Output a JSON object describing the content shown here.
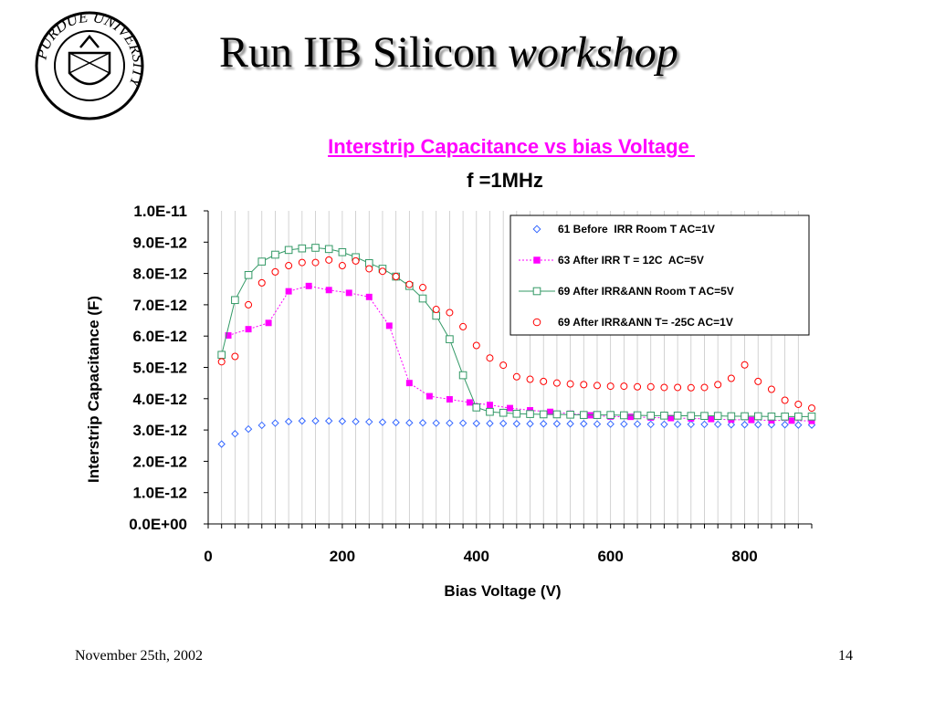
{
  "slide": {
    "title_main": "Run IIB Silicon ",
    "title_italic": "workshop",
    "footer_date": "November 25th, 2002",
    "page_number": "14",
    "logo_text": "PURDUE UNIVERSITY"
  },
  "chart_data": {
    "type": "scatter",
    "title": "Interstrip Capacitance vs bias Voltage ",
    "subtitle": "f =1MHz",
    "xlabel": "Bias Voltage (V)",
    "ylabel": "Interstrip Capacitance (F)",
    "xlim": [
      0,
      900
    ],
    "ylim": [
      0,
      1e-11
    ],
    "x_ticks": [
      0,
      200,
      400,
      600,
      800
    ],
    "x_tick_labels": [
      "0",
      "200",
      "400",
      "600",
      "800"
    ],
    "y_ticks": [
      0,
      1e-12,
      2e-12,
      3e-12,
      4e-12,
      5e-12,
      6e-12,
      7e-12,
      8e-12,
      9e-12,
      1e-11
    ],
    "y_tick_labels": [
      "0.0E+00",
      "1.0E-12",
      "2.0E-12",
      "3.0E-12",
      "4.0E-12",
      "5.0E-12",
      "6.0E-12",
      "7.0E-12",
      "8.0E-12",
      "9.0E-12",
      "1.0E-11"
    ],
    "grid": "vertical",
    "legend_position": "top-right",
    "series": [
      {
        "name": "61 Before  IRR Room T AC=1V",
        "marker": "diamond",
        "line": false,
        "color": "#3366ff",
        "x": [
          20,
          40,
          60,
          80,
          100,
          120,
          140,
          160,
          180,
          200,
          220,
          240,
          260,
          280,
          300,
          320,
          340,
          360,
          380,
          400,
          420,
          440,
          460,
          480,
          500,
          520,
          540,
          560,
          580,
          600,
          620,
          640,
          660,
          680,
          700,
          720,
          740,
          760,
          780,
          800,
          820,
          840,
          860,
          880,
          900
        ],
        "y": [
          2.55e-12,
          2.88e-12,
          3.03e-12,
          3.15e-12,
          3.22e-12,
          3.27e-12,
          3.29e-12,
          3.29e-12,
          3.29e-12,
          3.28e-12,
          3.27e-12,
          3.26e-12,
          3.25e-12,
          3.24e-12,
          3.23e-12,
          3.23e-12,
          3.22e-12,
          3.22e-12,
          3.22e-12,
          3.21e-12,
          3.21e-12,
          3.21e-12,
          3.2e-12,
          3.2e-12,
          3.2e-12,
          3.2e-12,
          3.2e-12,
          3.2e-12,
          3.19e-12,
          3.19e-12,
          3.19e-12,
          3.19e-12,
          3.18e-12,
          3.18e-12,
          3.18e-12,
          3.18e-12,
          3.18e-12,
          3.18e-12,
          3.17e-12,
          3.17e-12,
          3.17e-12,
          3.17e-12,
          3.17e-12,
          3.16e-12,
          3.16e-12
        ]
      },
      {
        "name": "63 After IRR T = 12C  AC=5V",
        "marker": "square-filled",
        "line": true,
        "color": "#ff00ff",
        "x": [
          30,
          60,
          90,
          120,
          150,
          180,
          210,
          240,
          270,
          300,
          330,
          360,
          390,
          420,
          450,
          480,
          510,
          540,
          570,
          600,
          630,
          660,
          690,
          720,
          750,
          780,
          810,
          840,
          870,
          900
        ],
        "y": [
          6.02e-12,
          6.22e-12,
          6.42e-12,
          7.43e-12,
          7.6e-12,
          7.47e-12,
          7.38e-12,
          7.25e-12,
          6.33e-12,
          4.5e-12,
          4.08e-12,
          3.98e-12,
          3.88e-12,
          3.8e-12,
          3.7e-12,
          3.63e-12,
          3.58e-12,
          3.52e-12,
          3.47e-12,
          3.43e-12,
          3.42e-12,
          3.4e-12,
          3.38e-12,
          3.37e-12,
          3.35e-12,
          3.33e-12,
          3.32e-12,
          3.31e-12,
          3.3e-12,
          3.29e-12
        ]
      },
      {
        "name": "69 After IRR&ANN Room T AC=5V",
        "marker": "square",
        "line": true,
        "color": "#339966",
        "x": [
          20,
          40,
          60,
          80,
          100,
          120,
          140,
          160,
          180,
          200,
          220,
          240,
          260,
          280,
          300,
          320,
          340,
          360,
          380,
          400,
          420,
          440,
          460,
          480,
          500,
          520,
          540,
          560,
          580,
          600,
          620,
          640,
          660,
          680,
          700,
          720,
          740,
          760,
          780,
          800,
          820,
          840,
          860,
          880,
          900
        ],
        "y": [
          5.4e-12,
          7.15e-12,
          7.95e-12,
          8.38e-12,
          8.6e-12,
          8.75e-12,
          8.8e-12,
          8.82e-12,
          8.78e-12,
          8.68e-12,
          8.52e-12,
          8.33e-12,
          8.15e-12,
          7.9e-12,
          7.6e-12,
          7.2e-12,
          6.65e-12,
          5.9e-12,
          4.75e-12,
          3.72e-12,
          3.58e-12,
          3.55e-12,
          3.52e-12,
          3.51e-12,
          3.5e-12,
          3.5e-12,
          3.49e-12,
          3.48e-12,
          3.48e-12,
          3.48e-12,
          3.47e-12,
          3.47e-12,
          3.46e-12,
          3.46e-12,
          3.46e-12,
          3.45e-12,
          3.45e-12,
          3.45e-12,
          3.44e-12,
          3.44e-12,
          3.44e-12,
          3.43e-12,
          3.43e-12,
          3.43e-12,
          3.43e-12
        ]
      },
      {
        "name": "69 After IRR&ANN T= -25C AC=1V",
        "marker": "circle",
        "line": false,
        "color": "#ff0000",
        "x": [
          20,
          40,
          60,
          80,
          100,
          120,
          140,
          160,
          180,
          200,
          220,
          240,
          260,
          280,
          300,
          320,
          340,
          360,
          380,
          400,
          420,
          440,
          460,
          480,
          500,
          520,
          540,
          560,
          580,
          600,
          620,
          640,
          660,
          680,
          700,
          720,
          740,
          760,
          780,
          800,
          820,
          840,
          860,
          880,
          900
        ],
        "y": [
          5.18e-12,
          5.35e-12,
          7e-12,
          7.7e-12,
          8.05e-12,
          8.25e-12,
          8.35e-12,
          8.35e-12,
          8.43e-12,
          8.25e-12,
          8.4e-12,
          8.15e-12,
          8.07e-12,
          7.9e-12,
          7.65e-12,
          7.55e-12,
          6.85e-12,
          6.75e-12,
          6.3e-12,
          5.7e-12,
          5.3e-12,
          5.07e-12,
          4.7e-12,
          4.62e-12,
          4.55e-12,
          4.5e-12,
          4.47e-12,
          4.45e-12,
          4.42e-12,
          4.4e-12,
          4.4e-12,
          4.38e-12,
          4.38e-12,
          4.36e-12,
          4.36e-12,
          4.35e-12,
          4.36e-12,
          4.45e-12,
          4.65e-12,
          5.08e-12,
          4.55e-12,
          4.3e-12,
          3.95e-12,
          3.82e-12,
          3.7e-12
        ]
      }
    ]
  }
}
